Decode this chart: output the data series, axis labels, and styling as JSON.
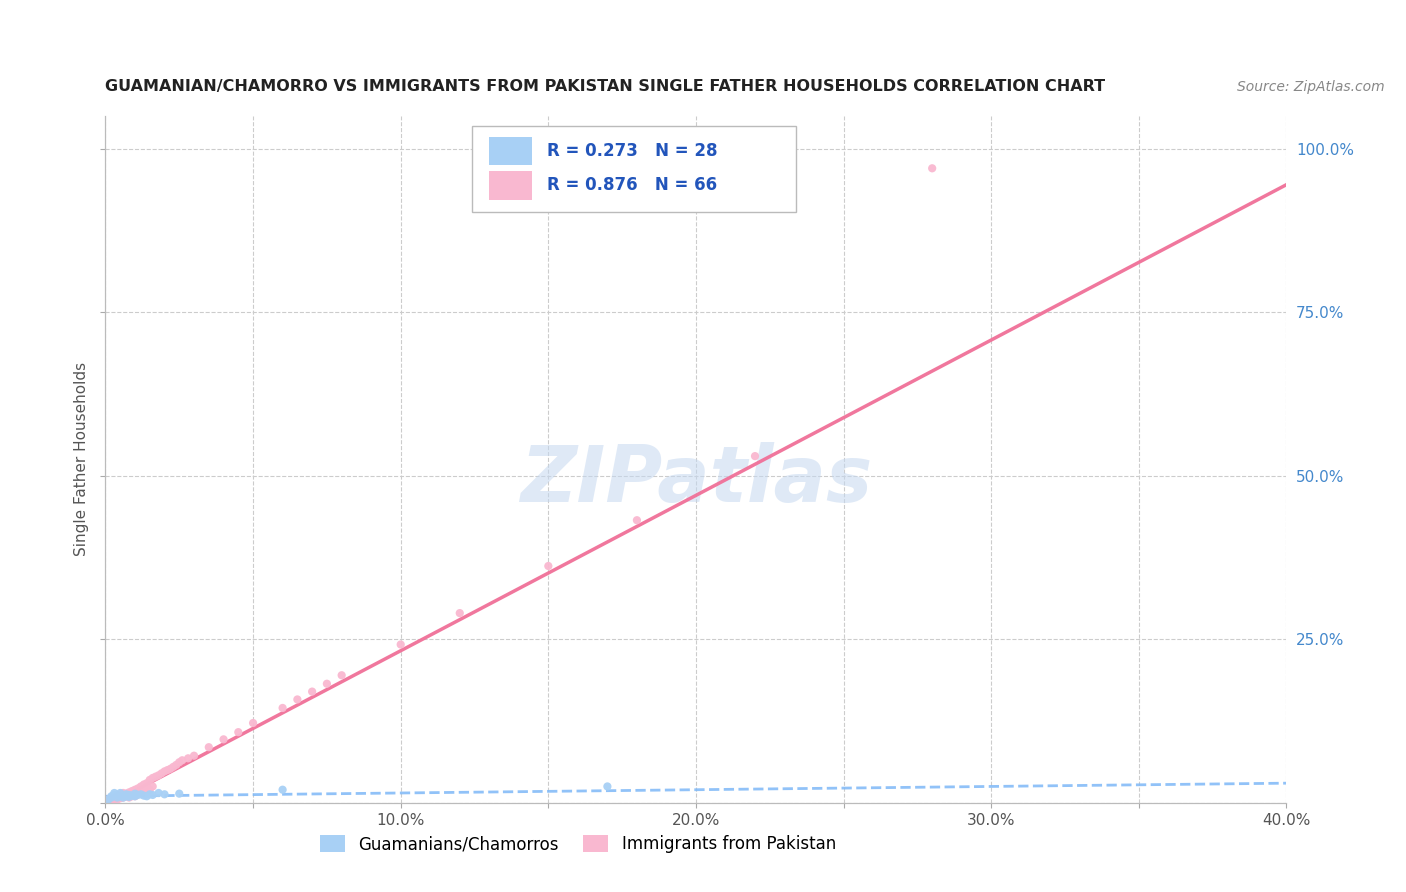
{
  "title": "GUAMANIAN/CHAMORRO VS IMMIGRANTS FROM PAKISTAN SINGLE FATHER HOUSEHOLDS CORRELATION CHART",
  "source": "Source: ZipAtlas.com",
  "ylabel_text": "Single Father Households",
  "watermark": "ZIPatlas",
  "xlim": [
    0.0,
    0.4
  ],
  "ylim": [
    0.0,
    1.05
  ],
  "xticks": [
    0.0,
    0.05,
    0.1,
    0.15,
    0.2,
    0.25,
    0.3,
    0.35,
    0.4
  ],
  "xticklabels": [
    "0.0%",
    "",
    "10.0%",
    "",
    "20.0%",
    "",
    "30.0%",
    "",
    "40.0%"
  ],
  "ytick_positions": [
    0.0,
    0.25,
    0.5,
    0.75,
    1.0
  ],
  "yticklabels_right": [
    "",
    "25.0%",
    "50.0%",
    "75.0%",
    "100.0%"
  ],
  "series1_name": "Guamanians/Chamorros",
  "series1_color": "#a8d0f5",
  "series1_line_color": "#7eb8f7",
  "series1_R": 0.273,
  "series1_N": 28,
  "series2_name": "Immigrants from Pakistan",
  "series2_color": "#f9b8d0",
  "series2_line_color": "#f07098",
  "series2_R": 0.876,
  "series2_N": 66,
  "legend_color": "#2255bb",
  "background_color": "#ffffff",
  "grid_color": "#cccccc",
  "series1_x": [
    0.001,
    0.002,
    0.002,
    0.003,
    0.003,
    0.004,
    0.004,
    0.005,
    0.005,
    0.006,
    0.007,
    0.007,
    0.008,
    0.008,
    0.009,
    0.01,
    0.01,
    0.011,
    0.012,
    0.013,
    0.014,
    0.015,
    0.016,
    0.018,
    0.02,
    0.025,
    0.06,
    0.17
  ],
  "series1_y": [
    0.005,
    0.008,
    0.01,
    0.012,
    0.015,
    0.008,
    0.012,
    0.01,
    0.015,
    0.008,
    0.01,
    0.013,
    0.009,
    0.012,
    0.011,
    0.01,
    0.014,
    0.012,
    0.013,
    0.011,
    0.01,
    0.013,
    0.012,
    0.015,
    0.013,
    0.014,
    0.02,
    0.025
  ],
  "series2_x": [
    0.001,
    0.001,
    0.002,
    0.002,
    0.002,
    0.003,
    0.003,
    0.003,
    0.004,
    0.004,
    0.004,
    0.005,
    0.005,
    0.005,
    0.006,
    0.006,
    0.006,
    0.007,
    0.007,
    0.008,
    0.008,
    0.008,
    0.009,
    0.009,
    0.01,
    0.01,
    0.01,
    0.011,
    0.011,
    0.012,
    0.012,
    0.013,
    0.013,
    0.014,
    0.014,
    0.015,
    0.015,
    0.016,
    0.016,
    0.017,
    0.018,
    0.019,
    0.02,
    0.021,
    0.022,
    0.023,
    0.024,
    0.025,
    0.026,
    0.028,
    0.03,
    0.035,
    0.04,
    0.045,
    0.05,
    0.06,
    0.065,
    0.07,
    0.075,
    0.08,
    0.1,
    0.12,
    0.15,
    0.18,
    0.22,
    0.28
  ],
  "series2_y": [
    0.003,
    0.005,
    0.005,
    0.008,
    0.003,
    0.006,
    0.008,
    0.004,
    0.008,
    0.01,
    0.005,
    0.01,
    0.013,
    0.007,
    0.012,
    0.015,
    0.008,
    0.014,
    0.01,
    0.016,
    0.012,
    0.008,
    0.018,
    0.01,
    0.02,
    0.015,
    0.01,
    0.022,
    0.018,
    0.025,
    0.015,
    0.028,
    0.02,
    0.03,
    0.025,
    0.035,
    0.02,
    0.038,
    0.025,
    0.04,
    0.042,
    0.045,
    0.048,
    0.05,
    0.052,
    0.055,
    0.058,
    0.062,
    0.065,
    0.068,
    0.072,
    0.085,
    0.097,
    0.108,
    0.122,
    0.145,
    0.158,
    0.17,
    0.182,
    0.195,
    0.242,
    0.29,
    0.362,
    0.432,
    0.53,
    0.97
  ],
  "pink_line_x0": 0.0,
  "pink_line_y0": -0.005,
  "pink_line_x1": 0.4,
  "pink_line_y1": 0.945,
  "blue_line_x0": 0.0,
  "blue_line_y0": 0.01,
  "blue_line_x1": 0.4,
  "blue_line_y1": 0.03
}
